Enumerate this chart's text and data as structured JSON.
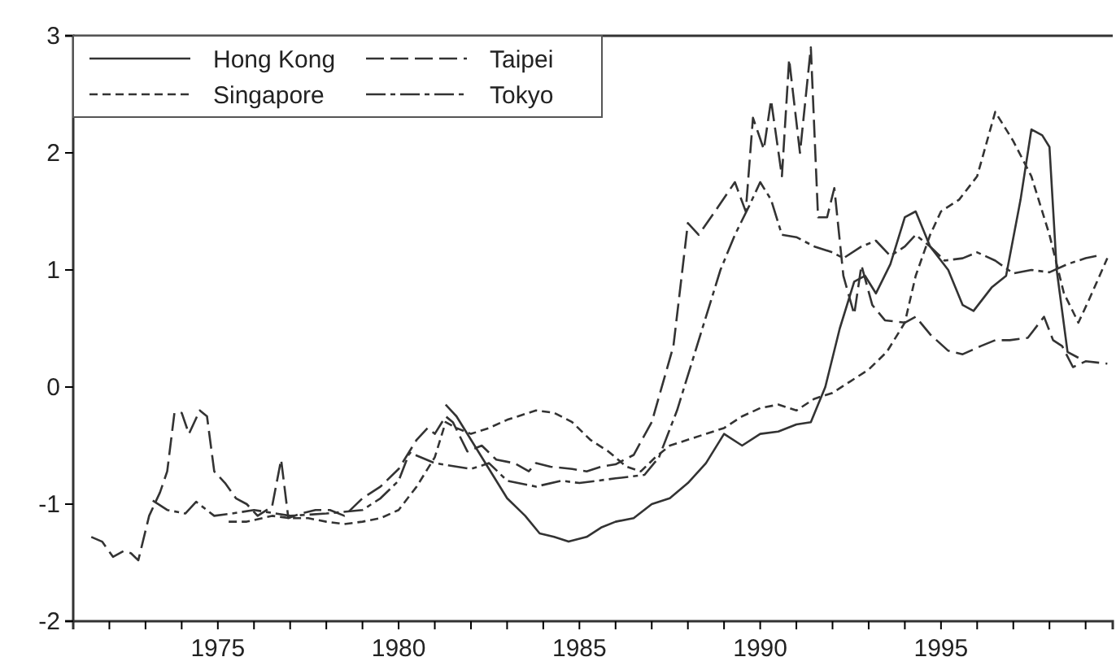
{
  "chart_data": {
    "type": "line",
    "xlim": [
      1971,
      1999.75
    ],
    "ylim": [
      -2,
      3
    ],
    "xticks": [
      {
        "value": 1972,
        "label": null
      },
      {
        "value": 1973,
        "label": null
      },
      {
        "value": 1974,
        "label": null
      },
      1975,
      {
        "value": 1976,
        "label": null
      },
      {
        "value": 1977,
        "label": null
      },
      {
        "value": 1978,
        "label": null
      },
      {
        "value": 1979,
        "label": null
      },
      1980,
      {
        "value": 1981,
        "label": null
      },
      {
        "value": 1982,
        "label": null
      },
      {
        "value": 1983,
        "label": null
      },
      {
        "value": 1984,
        "label": null
      },
      1985,
      {
        "value": 1986,
        "label": null
      },
      {
        "value": 1987,
        "label": null
      },
      {
        "value": 1988,
        "label": null
      },
      {
        "value": 1989,
        "label": null
      },
      1990,
      {
        "value": 1991,
        "label": null
      },
      {
        "value": 1992,
        "label": null
      },
      {
        "value": 1993,
        "label": null
      },
      {
        "value": 1994,
        "label": null
      },
      1995,
      {
        "value": 1996,
        "label": null
      },
      {
        "value": 1997,
        "label": null
      },
      {
        "value": 1998,
        "label": null
      },
      {
        "value": 1999,
        "label": null
      }
    ],
    "yticks": [
      -2,
      -1,
      0,
      1,
      2,
      3
    ],
    "grid": false,
    "legend": "top left",
    "marker": "none",
    "series": [
      {
        "name": "Hong Kong",
        "color": "#333333",
        "line_style": "solid",
        "x": [
          1981.3,
          1981.6,
          1982,
          1982.5,
          1983,
          1983.5,
          1983.9,
          1984.3,
          1984.7,
          1985.2,
          1985.6,
          1986,
          1986.5,
          1987,
          1987.5,
          1988,
          1988.5,
          1989,
          1989.5,
          1990,
          1990.5,
          1991,
          1991.4,
          1991.8,
          1992.2,
          1992.6,
          1992.9,
          1993.2,
          1993.6,
          1994,
          1994.3,
          1994.7,
          1995.2,
          1995.6,
          1995.9,
          1996.4,
          1996.8,
          1997.2,
          1997.5,
          1997.8,
          1998,
          1998.2,
          1998.5,
          1998.8
        ],
        "values": [
          -0.15,
          -0.25,
          -0.45,
          -0.7,
          -0.95,
          -1.1,
          -1.25,
          -1.28,
          -1.32,
          -1.28,
          -1.2,
          -1.15,
          -1.12,
          -1,
          -0.95,
          -0.82,
          -0.65,
          -0.4,
          -0.5,
          -0.4,
          -0.38,
          -0.32,
          -0.3,
          0,
          0.5,
          0.9,
          0.95,
          0.8,
          1.05,
          1.45,
          1.5,
          1.2,
          1,
          0.7,
          0.65,
          0.85,
          0.95,
          1.6,
          2.2,
          2.15,
          2.05,
          1,
          0.3,
          0.25
        ]
      },
      {
        "name": "Singapore",
        "color": "#333333",
        "line_style": "dotted",
        "x": [
          1975.3,
          1975.8,
          1976.5,
          1977,
          1977.5,
          1978,
          1978.5,
          1979,
          1979.5,
          1980,
          1980.5,
          1981,
          1981.3,
          1981.6,
          1982,
          1982.5,
          1983,
          1983.8,
          1984.3,
          1984.8,
          1985.3,
          1985.8,
          1986.3,
          1986.7,
          1987.1,
          1987.5,
          1988,
          1988.5,
          1989,
          1989.5,
          1990,
          1990.5,
          1991,
          1991.5,
          1992,
          1992.5,
          1993,
          1993.5,
          1994,
          1994.3,
          1994.7,
          1995,
          1995.5,
          1996,
          1996.5,
          1997,
          1997.5,
          1998,
          1998.4,
          1998.8,
          1999.1,
          1999.6
        ],
        "values": [
          -1.15,
          -1.15,
          -1.1,
          -1.12,
          -1.12,
          -1.15,
          -1.17,
          -1.15,
          -1.12,
          -1.05,
          -0.85,
          -0.6,
          -0.3,
          -0.35,
          -0.4,
          -0.35,
          -0.28,
          -0.2,
          -0.22,
          -0.3,
          -0.45,
          -0.55,
          -0.68,
          -0.72,
          -0.6,
          -0.5,
          -0.45,
          -0.4,
          -0.35,
          -0.25,
          -0.18,
          -0.15,
          -0.2,
          -0.1,
          -0.05,
          0.05,
          0.15,
          0.3,
          0.55,
          0.95,
          1.3,
          1.5,
          1.6,
          1.8,
          2.35,
          2.1,
          1.8,
          1.3,
          0.8,
          0.55,
          0.75,
          1.1
        ]
      },
      {
        "name": "Taipei",
        "color": "#333333",
        "line_style": "dashed",
        "x": [
          1971.5,
          1971.8,
          1972.1,
          1972.4,
          1972.6,
          1972.8,
          1973.1,
          1973.4,
          1973.6,
          1973.8,
          1974,
          1974.2,
          1974.5,
          1974.7,
          1974.9,
          1975.2,
          1975.5,
          1975.8,
          1976.1,
          1976.5,
          1976.75,
          1976.95,
          1977.3,
          1977.7,
          1978.1,
          1978.5,
          1979,
          1979.5,
          1980,
          1980.5,
          1980.8,
          1981,
          1981.3,
          1981.5,
          1981.9,
          1982.3,
          1982.7,
          1983.2,
          1983.6,
          1983.8,
          1984.2,
          1984.8,
          1985.2,
          1985.6,
          1986,
          1986.5,
          1987,
          1987.6,
          1988,
          1988.3,
          1988.75,
          1989.3,
          1989.6,
          1989.8,
          1990.1,
          1990.3,
          1990.6,
          1990.8,
          1991.1,
          1991.4,
          1991.6,
          1991.85,
          1992.05,
          1992.3,
          1992.6,
          1992.8,
          1993.1,
          1993.45,
          1994,
          1994.3,
          1994.7,
          1995.2,
          1995.6,
          1996.1,
          1996.5,
          1996.9,
          1997.4,
          1997.85,
          1998.1,
          1998.35,
          1998.65,
          1999,
          1999.6
        ],
        "values": [
          -1.28,
          -1.32,
          -1.45,
          -1.4,
          -1.42,
          -1.48,
          -1.1,
          -0.9,
          -0.72,
          -0.22,
          -0.22,
          -0.4,
          -0.2,
          -0.25,
          -0.72,
          -0.82,
          -0.95,
          -1,
          -1.1,
          -1.02,
          -0.62,
          -1.12,
          -1.08,
          -1.05,
          -1.05,
          -1.1,
          -0.95,
          -0.85,
          -0.7,
          -0.45,
          -0.35,
          -0.4,
          -0.25,
          -0.3,
          -0.55,
          -0.5,
          -0.62,
          -0.65,
          -0.72,
          -0.65,
          -0.68,
          -0.7,
          -0.72,
          -0.68,
          -0.66,
          -0.58,
          -0.3,
          0.35,
          1.4,
          1.3,
          1.5,
          1.75,
          1.5,
          2.3,
          2.03,
          2.45,
          1.8,
          2.8,
          2,
          2.9,
          1.45,
          1.45,
          1.7,
          0.95,
          0.62,
          1.04,
          0.7,
          0.57,
          0.55,
          0.6,
          0.45,
          0.31,
          0.28,
          0.35,
          0.4,
          0.4,
          0.42,
          0.6,
          0.4,
          0.35,
          0.17,
          0.22,
          0.2
        ]
      },
      {
        "name": "Tokyo",
        "color": "#333333",
        "line_style": "dashdot",
        "x": [
          1973.2,
          1973.6,
          1974.1,
          1974.4,
          1974.9,
          1975.4,
          1976,
          1977,
          1978,
          1979,
          1979.5,
          1980,
          1980.3,
          1981,
          1982,
          1982.5,
          1983,
          1983.8,
          1984.5,
          1985,
          1986,
          1986.8,
          1987.2,
          1987.7,
          1988,
          1988.5,
          1988.9,
          1989.3,
          1989.7,
          1990,
          1990.3,
          1990.6,
          1991,
          1991.5,
          1992,
          1992.3,
          1992.8,
          1993.2,
          1993.6,
          1994,
          1994.3,
          1994.7,
          1995.1,
          1995.6,
          1996,
          1996.5,
          1997,
          1997.5,
          1998,
          1998.5,
          1999,
          1999.3
        ],
        "values": [
          -0.97,
          -1.05,
          -1.08,
          -0.98,
          -1.1,
          -1.08,
          -1.05,
          -1.1,
          -1.08,
          -1.05,
          -0.95,
          -0.8,
          -0.56,
          -0.65,
          -0.7,
          -0.65,
          -0.8,
          -0.85,
          -0.8,
          -0.82,
          -0.78,
          -0.75,
          -0.6,
          -0.2,
          0.1,
          0.6,
          1,
          1.3,
          1.55,
          1.75,
          1.6,
          1.3,
          1.28,
          1.2,
          1.15,
          1.1,
          1.2,
          1.25,
          1.12,
          1.2,
          1.3,
          1.2,
          1.08,
          1.1,
          1.15,
          1.08,
          0.97,
          1,
          0.98,
          1.05,
          1.1,
          1.12
        ]
      }
    ]
  }
}
